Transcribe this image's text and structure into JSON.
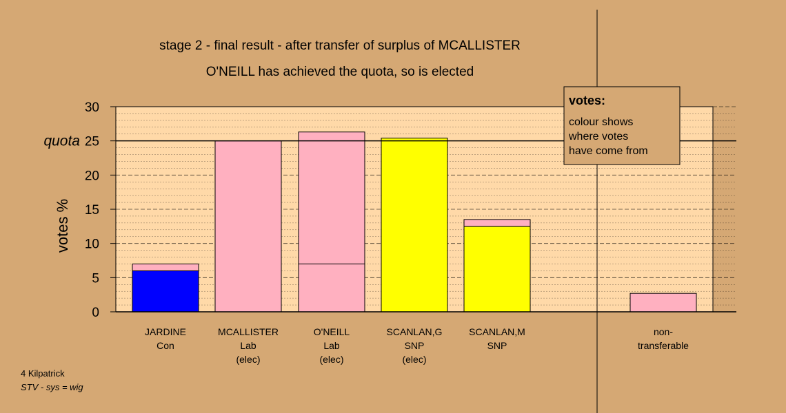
{
  "chart_data": {
    "type": "bar",
    "stacked": true,
    "title": "stage 2 - final result - after transfer of surplus of MCALLISTER",
    "subtitle": "O'NEILL has achieved the quota, so is elected",
    "ylabel": "votes %",
    "ylim": [
      0,
      30
    ],
    "yticks": [
      0,
      5,
      10,
      15,
      20,
      25,
      30
    ],
    "quota": 25,
    "quota_label": "quota",
    "grid": true,
    "categories": [
      [
        "JARDINE",
        "Con"
      ],
      [
        "MCALLISTER",
        "Lab",
        "(elec)"
      ],
      [
        "O'NEILL",
        "Lab",
        "(elec)"
      ],
      [
        "SCANLAN,G",
        "SNP",
        "(elec)"
      ],
      [
        "SCANLAN,M",
        "SNP"
      ],
      [
        "non-",
        "transferable"
      ]
    ],
    "bars": [
      {
        "segments": [
          {
            "value": 6,
            "color": "#0000ff"
          },
          {
            "value": 1,
            "color": "#ffb0c0"
          }
        ]
      },
      {
        "segments": [
          {
            "value": 25,
            "color": "#ffb0c0"
          }
        ]
      },
      {
        "segments": [
          {
            "value": 7,
            "color": "#ffb0c0"
          },
          {
            "value": 19.3,
            "color": "#ffb0c0"
          }
        ]
      },
      {
        "segments": [
          {
            "value": 25.4,
            "color": "#ffff00"
          }
        ]
      },
      {
        "segments": [
          {
            "value": 12.5,
            "color": "#ffff00"
          },
          {
            "value": 1,
            "color": "#ffb0c0"
          }
        ]
      },
      {
        "segments": [
          {
            "value": 2.7,
            "color": "#ffb0c0"
          }
        ]
      }
    ],
    "legend": {
      "title": "votes:",
      "lines": [
        "colour shows",
        "where votes",
        "have come from"
      ],
      "placement": "top-right"
    }
  },
  "footer": {
    "line1": "4 Kilpatrick",
    "line2": "STV - sys = wig"
  },
  "colors": {
    "background": "#d5a874",
    "plot_background": "#ffd9a8"
  }
}
